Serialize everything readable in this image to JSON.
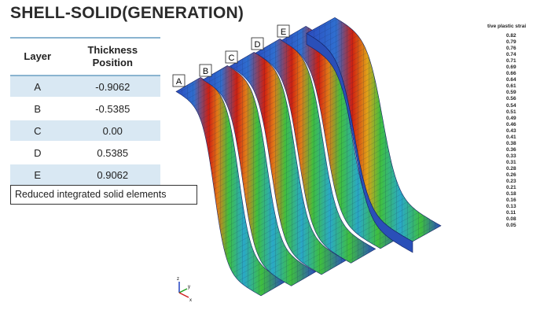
{
  "title": "SHELL-SOLID(GENERATION)",
  "table": {
    "header_layer": "Layer",
    "header_thickness_line1": "Thickness",
    "header_thickness_line2": "Position",
    "rows": [
      {
        "layer": "A",
        "position": "-0.9062"
      },
      {
        "layer": "B",
        "position": "-0.5385"
      },
      {
        "layer": "C",
        "position": "0.00"
      },
      {
        "layer": "D",
        "position": "0.5385"
      },
      {
        "layer": "E",
        "position": "0.9062"
      }
    ]
  },
  "note": "Reduced integrated solid elements",
  "strip_labels": [
    "A",
    "B",
    "C",
    "D",
    "E"
  ],
  "legend": {
    "title": "tive plastic strai",
    "values": [
      "0.82",
      "0.79",
      "0.76",
      "0.74",
      "0.71",
      "0.69",
      "0.66",
      "0.64",
      "0.61",
      "0.59",
      "0.56",
      "0.54",
      "0.51",
      "0.49",
      "0.46",
      "0.43",
      "0.41",
      "0.38",
      "0.36",
      "0.33",
      "0.31",
      "0.28",
      "0.26",
      "0.23",
      "0.21",
      "0.18",
      "0.16",
      "0.13",
      "0.11",
      "0.08",
      "0.05"
    ]
  },
  "triad": {
    "z": "z",
    "y": "y",
    "x": "x"
  },
  "colors": {
    "accent": "#8ab4d0",
    "row_shade": "#d9e8f3",
    "fe_blue": "#2b4cc0",
    "fe_green": "#3fbf3f",
    "fe_red": "#d02010"
  }
}
